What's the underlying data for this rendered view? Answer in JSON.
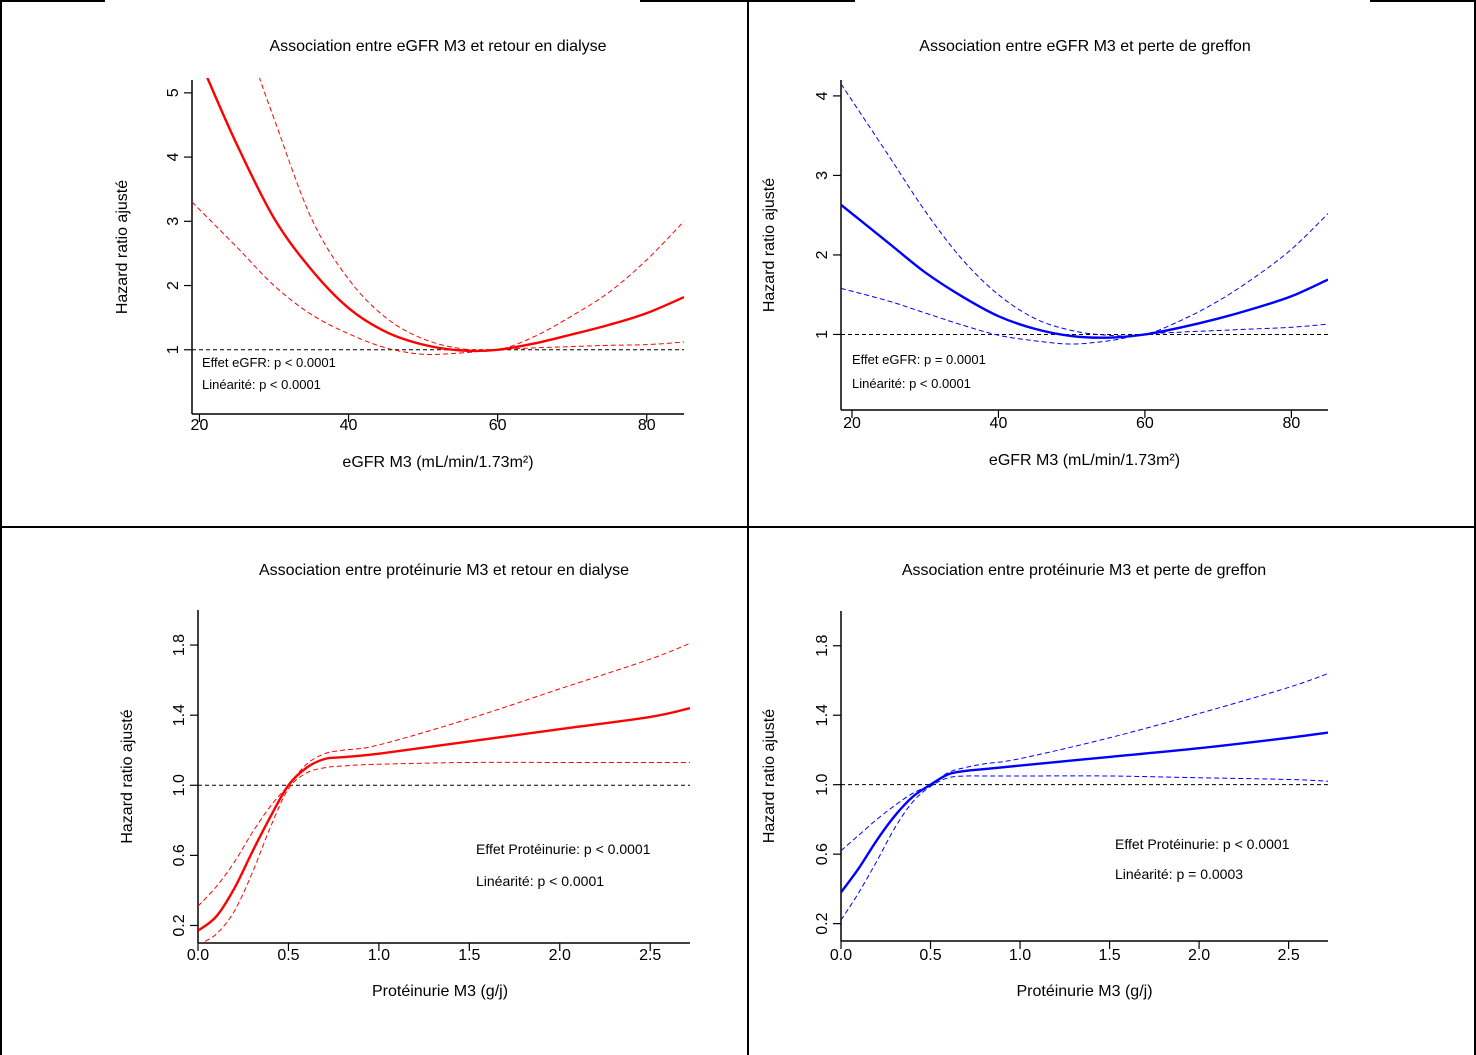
{
  "colors": {
    "red": "#ff0000",
    "blue": "#0000ff",
    "reference": "#000000"
  },
  "chart_data": [
    {
      "type": "line",
      "title": "Association entre eGFR M3 et retour en dialyse",
      "xlabel": "eGFR M3 (mL/min/1.73m²)",
      "ylabel": "Hazard ratio ajusté",
      "xlim": [
        19,
        85
      ],
      "ylim": [
        0,
        5.2
      ],
      "xticks": [
        20,
        40,
        60,
        80
      ],
      "xtick_labels": [
        "20",
        "40",
        "60",
        "80"
      ],
      "yticks": [
        1,
        2,
        3,
        4,
        5
      ],
      "ytick_labels": [
        "1",
        "2",
        "3",
        "4",
        "5"
      ],
      "color": "#ff0000",
      "reference_line": 1,
      "annotations": [
        "Effet eGFR: p < 0.0001",
        "Linéarité: p < 0.0001"
      ],
      "series": [
        {
          "role": "estimate",
          "x": [
            21,
            25,
            30,
            35,
            40,
            45,
            50,
            55,
            60,
            65,
            70,
            75,
            80,
            85
          ],
          "y": [
            5.25,
            4.2,
            3.05,
            2.25,
            1.65,
            1.28,
            1.08,
            0.99,
            1.0,
            1.1,
            1.24,
            1.39,
            1.57,
            1.82
          ]
        },
        {
          "role": "upper_95ci",
          "x": [
            28,
            30,
            35,
            40,
            45,
            50,
            55,
            60,
            65,
            70,
            75,
            80,
            85
          ],
          "y": [
            5.25,
            4.6,
            3.05,
            2.1,
            1.5,
            1.17,
            1.02,
            1.0,
            1.21,
            1.53,
            1.9,
            2.4,
            3.0
          ]
        },
        {
          "role": "lower_95ci",
          "x": [
            19,
            25,
            30,
            35,
            40,
            45,
            50,
            55,
            60,
            65,
            70,
            75,
            80,
            85
          ],
          "y": [
            3.3,
            2.6,
            2.0,
            1.55,
            1.25,
            1.03,
            0.93,
            0.95,
            1.0,
            1.03,
            1.05,
            1.07,
            1.08,
            1.12
          ]
        }
      ]
    },
    {
      "type": "line",
      "title": "Association entre eGFR M3 et perte de greffon",
      "xlabel": "eGFR M3 (mL/min/1.73m²)",
      "ylabel": "Hazard ratio ajusté",
      "xlim": [
        18.5,
        85
      ],
      "ylim": [
        0.05,
        4.2
      ],
      "xticks": [
        20,
        40,
        60,
        80
      ],
      "xtick_labels": [
        "20",
        "40",
        "60",
        "80"
      ],
      "yticks": [
        1,
        2,
        3,
        4
      ],
      "ytick_labels": [
        "1",
        "2",
        "3",
        "4"
      ],
      "color": "#0000ff",
      "reference_line": 1,
      "annotations": [
        "Effet eGFR: p = 0.0001",
        "Linéarité: p < 0.0001"
      ],
      "series": [
        {
          "role": "estimate",
          "x": [
            18.5,
            25,
            30,
            35,
            40,
            45,
            50,
            55,
            60,
            65,
            70,
            75,
            80,
            85
          ],
          "y": [
            2.63,
            2.15,
            1.78,
            1.48,
            1.23,
            1.07,
            0.98,
            0.96,
            1.0,
            1.09,
            1.2,
            1.33,
            1.48,
            1.69
          ]
        },
        {
          "role": "upper_95ci",
          "x": [
            18.5,
            25,
            30,
            35,
            40,
            45,
            50,
            55,
            60,
            65,
            70,
            75,
            80,
            85
          ],
          "y": [
            4.15,
            3.25,
            2.55,
            1.95,
            1.5,
            1.2,
            1.05,
            0.99,
            1.0,
            1.18,
            1.42,
            1.72,
            2.07,
            2.52
          ]
        },
        {
          "role": "lower_95ci",
          "x": [
            18.5,
            25,
            30,
            35,
            40,
            45,
            50,
            55,
            60,
            65,
            70,
            75,
            80,
            85
          ],
          "y": [
            1.58,
            1.42,
            1.27,
            1.12,
            0.99,
            0.92,
            0.88,
            0.92,
            1.0,
            1.03,
            1.05,
            1.07,
            1.09,
            1.13
          ]
        }
      ]
    },
    {
      "type": "line",
      "title": "Association entre protéinurie M3 et retour en dialyse",
      "xlabel": "Protéinurie M3 (g/j)",
      "ylabel": "Hazard ratio ajusté",
      "xlim": [
        0,
        2.72
      ],
      "ylim": [
        0.1,
        2.0
      ],
      "xticks": [
        0,
        0.5,
        1,
        1.5,
        2,
        2.5
      ],
      "xtick_labels": [
        "0.0",
        "0.5",
        "1.0",
        "1.5",
        "2.0",
        "2.5"
      ],
      "yticks": [
        0.2,
        0.6,
        1.0,
        1.4,
        1.8
      ],
      "ytick_labels": [
        "0.2",
        "0.6",
        "1.0",
        "1.4",
        "1.8"
      ],
      "color": "#ff0000",
      "reference_line": 1,
      "annotations": [
        "Effet Protéinurie: p < 0.0001",
        "Linéarité: p < 0.0001"
      ],
      "series": [
        {
          "role": "estimate",
          "x": [
            0,
            0.1,
            0.2,
            0.3,
            0.4,
            0.5,
            0.6,
            0.7,
            0.8,
            1.0,
            1.5,
            2.0,
            2.5,
            2.72
          ],
          "y": [
            0.17,
            0.25,
            0.41,
            0.62,
            0.82,
            1.0,
            1.1,
            1.15,
            1.16,
            1.18,
            1.25,
            1.32,
            1.39,
            1.44
          ]
        },
        {
          "role": "upper_95ci",
          "x": [
            0,
            0.1,
            0.2,
            0.3,
            0.4,
            0.5,
            0.6,
            0.7,
            0.8,
            1.0,
            1.5,
            2.0,
            2.5,
            2.72
          ],
          "y": [
            0.31,
            0.42,
            0.56,
            0.73,
            0.88,
            1.0,
            1.12,
            1.18,
            1.2,
            1.23,
            1.38,
            1.55,
            1.72,
            1.81
          ]
        },
        {
          "role": "lower_95ci",
          "x": [
            0,
            0.1,
            0.2,
            0.3,
            0.4,
            0.5,
            0.6,
            0.7,
            0.8,
            1.0,
            1.5,
            2.0,
            2.5,
            2.72
          ],
          "y": [
            0.09,
            0.15,
            0.28,
            0.5,
            0.76,
            0.98,
            1.07,
            1.1,
            1.11,
            1.12,
            1.13,
            1.13,
            1.13,
            1.13
          ]
        }
      ]
    },
    {
      "type": "line",
      "title": "Association entre protéinurie M3 et perte de greffon",
      "xlabel": "Protéinurie M3 (g/j)",
      "ylabel": "Hazard ratio ajusté",
      "xlim": [
        0,
        2.72
      ],
      "ylim": [
        0.1,
        2.0
      ],
      "xticks": [
        0,
        0.5,
        1,
        1.5,
        2,
        2.5
      ],
      "xtick_labels": [
        "0.0",
        "0.5",
        "1.0",
        "1.5",
        "2.0",
        "2.5"
      ],
      "yticks": [
        0.2,
        0.6,
        1.0,
        1.4,
        1.8
      ],
      "ytick_labels": [
        "0.2",
        "0.6",
        "1.0",
        "1.4",
        "1.8"
      ],
      "color": "#0000ff",
      "reference_line": 1,
      "annotations": [
        "Effet Protéinurie: p < 0.0001",
        "Linéarité: p = 0.0003"
      ],
      "series": [
        {
          "role": "estimate",
          "x": [
            0,
            0.1,
            0.2,
            0.3,
            0.4,
            0.5,
            0.6,
            0.7,
            0.8,
            1.0,
            1.5,
            2.0,
            2.5,
            2.72
          ],
          "y": [
            0.38,
            0.52,
            0.68,
            0.82,
            0.93,
            1.0,
            1.06,
            1.08,
            1.09,
            1.11,
            1.16,
            1.21,
            1.27,
            1.3
          ]
        },
        {
          "role": "upper_95ci",
          "x": [
            0,
            0.1,
            0.2,
            0.3,
            0.4,
            0.5,
            0.6,
            0.7,
            0.8,
            1.0,
            1.5,
            2.0,
            2.5,
            2.72
          ],
          "y": [
            0.62,
            0.71,
            0.8,
            0.88,
            0.95,
            1.0,
            1.07,
            1.1,
            1.12,
            1.15,
            1.27,
            1.41,
            1.56,
            1.64
          ]
        },
        {
          "role": "lower_95ci",
          "x": [
            0,
            0.1,
            0.2,
            0.3,
            0.4,
            0.5,
            0.6,
            0.7,
            0.8,
            1.0,
            1.5,
            2.0,
            2.5,
            2.72
          ],
          "y": [
            0.22,
            0.38,
            0.56,
            0.75,
            0.9,
            0.99,
            1.04,
            1.05,
            1.05,
            1.05,
            1.05,
            1.04,
            1.03,
            1.02
          ]
        }
      ]
    }
  ]
}
